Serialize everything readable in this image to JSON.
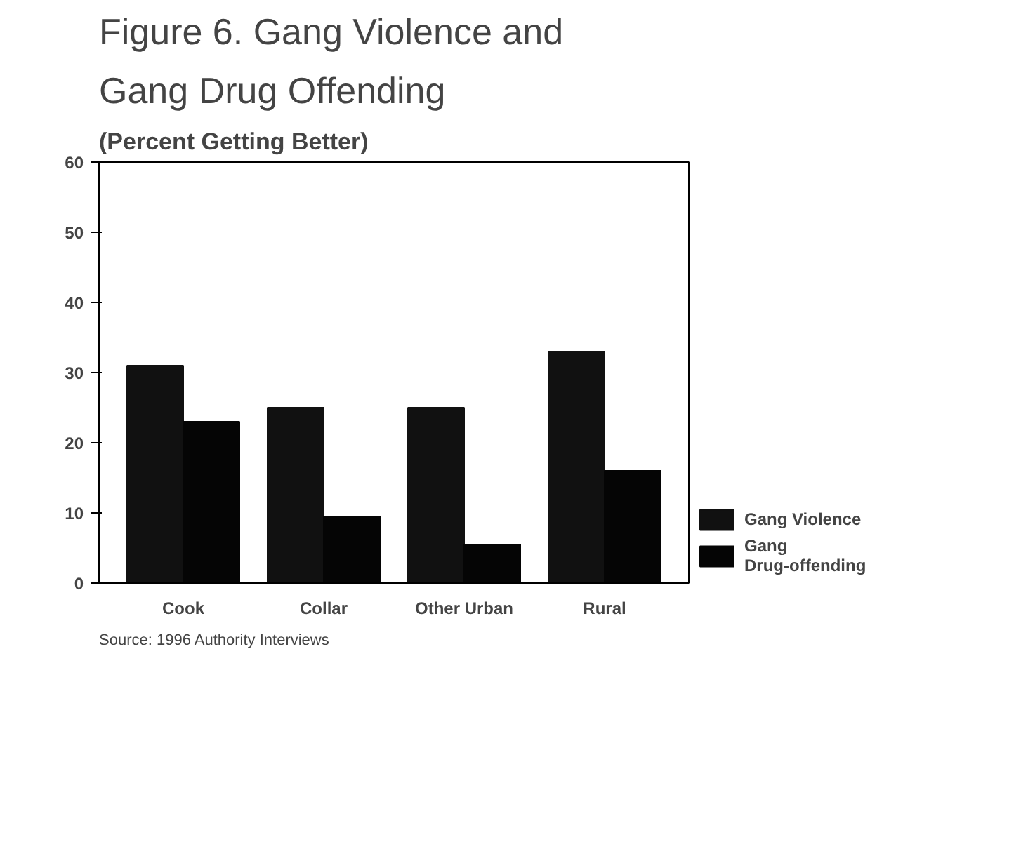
{
  "chart_data": {
    "type": "bar",
    "title": "Figure 6. Gang Violence and\nGang Drug Offending",
    "subtitle": "(Percent Getting Better)",
    "categories": [
      "Cook",
      "Collar",
      "Other Urban",
      "Rural"
    ],
    "series": [
      {
        "name": "Gang Violence",
        "color": "#111111",
        "values": [
          31,
          25,
          25,
          33
        ]
      },
      {
        "name": "Gang\nDrug-offending",
        "color": "#050505",
        "values": [
          23,
          9.5,
          5.5,
          16
        ]
      }
    ],
    "ylim": [
      0,
      60
    ],
    "yticks": [
      0,
      10,
      20,
      30,
      40,
      50,
      60
    ],
    "grid": false,
    "legend": "right",
    "annotations": [
      "Source:  1996 Authority Interviews"
    ]
  }
}
